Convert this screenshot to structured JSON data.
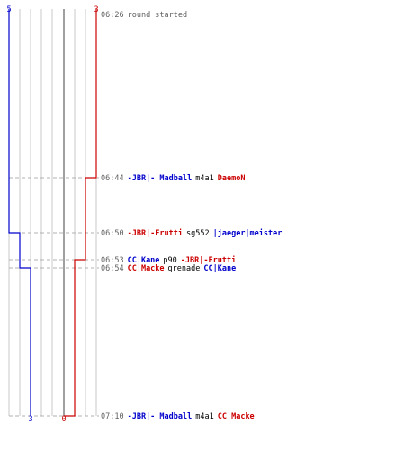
{
  "colors": {
    "blue": "#0000cc",
    "red": "#cc0000",
    "grid": "#c8c8c8",
    "center": "#808080",
    "time": "#606060",
    "text": "#000000"
  },
  "start_scores": {
    "blue": "5",
    "red": "3"
  },
  "end_scores": {
    "blue": "3",
    "red": "0"
  },
  "start_event": {
    "time": "06:26",
    "text": "round started"
  },
  "events": [
    {
      "time": "06:44",
      "killer": {
        "name": "-JBR|- Madball",
        "team": "blue"
      },
      "weapon": "m4a1",
      "victim": {
        "name": "DaemoN",
        "team": "red"
      },
      "blue_after": 5,
      "red_after": 2
    },
    {
      "time": "06:50",
      "killer": {
        "name": "-JBR|-Frutti",
        "team": "red"
      },
      "weapon": "sg552",
      "victim": {
        "name": "|jaeger|meister",
        "team": "blue"
      },
      "blue_after": 4,
      "red_after": 2
    },
    {
      "time": "06:53",
      "killer": {
        "name": "CC|Kane",
        "team": "blue"
      },
      "weapon": "p90",
      "victim": {
        "name": "-JBR|-Frutti",
        "team": "red"
      },
      "blue_after": 4,
      "red_after": 1
    },
    {
      "time": "06:54",
      "killer": {
        "name": "CC|Macke",
        "team": "red"
      },
      "weapon": "grenade",
      "victim": {
        "name": "CC|Kane",
        "team": "blue"
      },
      "blue_after": 3,
      "red_after": 1
    },
    {
      "time": "07:10",
      "killer": {
        "name": "-JBR|- Madball",
        "team": "blue"
      },
      "weapon": "m4a1",
      "victim": {
        "name": "CC|Macke",
        "team": "red"
      },
      "blue_after": 3,
      "red_after": 0
    }
  ]
}
